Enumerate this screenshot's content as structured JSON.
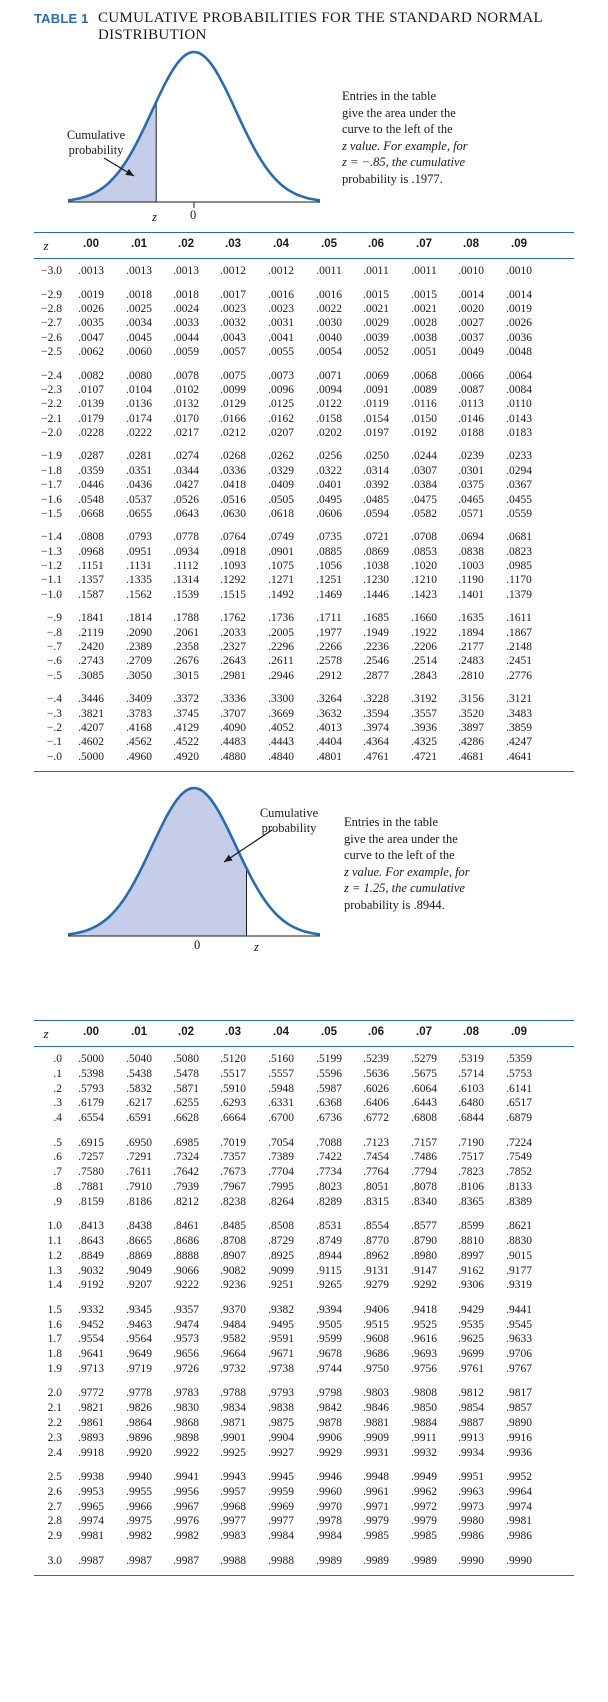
{
  "title": {
    "label": "TABLE 1",
    "text_line1": "CUMULATIVE PROBABILITIES FOR THE STANDARD NORMAL",
    "text_line2": "DISTRIBUTION"
  },
  "figure_left": {
    "label_line1": "Cumulative",
    "label_line2": "probability",
    "z_label": "z",
    "zero_label": "0",
    "note": [
      "Entries in the table",
      "give the area under the",
      "curve to the left of the",
      "z value. For example, for",
      "z = −.85, the cumulative",
      "probability is .1977."
    ]
  },
  "figure_right": {
    "label_line1": "Cumulative",
    "label_line2": "probability",
    "z_label": "z",
    "zero_label": "0",
    "note": [
      "Entries in the table",
      "give the area under the",
      "curve to the left of the",
      "z value. For example, for",
      "z = 1.25, the cumulative",
      "probability is .8944."
    ]
  },
  "headers": [
    "z",
    ".00",
    ".01",
    ".02",
    ".03",
    ".04",
    ".05",
    ".06",
    ".07",
    ".08",
    ".09"
  ],
  "negative_table": [
    [
      [
        "−3.0",
        ".0013",
        ".0013",
        ".0013",
        ".0012",
        ".0012",
        ".0011",
        ".0011",
        ".0011",
        ".0010",
        ".0010"
      ]
    ],
    [
      [
        "−2.9",
        ".0019",
        ".0018",
        ".0018",
        ".0017",
        ".0016",
        ".0016",
        ".0015",
        ".0015",
        ".0014",
        ".0014"
      ],
      [
        "−2.8",
        ".0026",
        ".0025",
        ".0024",
        ".0023",
        ".0023",
        ".0022",
        ".0021",
        ".0021",
        ".0020",
        ".0019"
      ],
      [
        "−2.7",
        ".0035",
        ".0034",
        ".0033",
        ".0032",
        ".0031",
        ".0030",
        ".0029",
        ".0028",
        ".0027",
        ".0026"
      ],
      [
        "−2.6",
        ".0047",
        ".0045",
        ".0044",
        ".0043",
        ".0041",
        ".0040",
        ".0039",
        ".0038",
        ".0037",
        ".0036"
      ],
      [
        "−2.5",
        ".0062",
        ".0060",
        ".0059",
        ".0057",
        ".0055",
        ".0054",
        ".0052",
        ".0051",
        ".0049",
        ".0048"
      ]
    ],
    [
      [
        "−2.4",
        ".0082",
        ".0080",
        ".0078",
        ".0075",
        ".0073",
        ".0071",
        ".0069",
        ".0068",
        ".0066",
        ".0064"
      ],
      [
        "−2.3",
        ".0107",
        ".0104",
        ".0102",
        ".0099",
        ".0096",
        ".0094",
        ".0091",
        ".0089",
        ".0087",
        ".0084"
      ],
      [
        "−2.2",
        ".0139",
        ".0136",
        ".0132",
        ".0129",
        ".0125",
        ".0122",
        ".0119",
        ".0116",
        ".0113",
        ".0110"
      ],
      [
        "−2.1",
        ".0179",
        ".0174",
        ".0170",
        ".0166",
        ".0162",
        ".0158",
        ".0154",
        ".0150",
        ".0146",
        ".0143"
      ],
      [
        "−2.0",
        ".0228",
        ".0222",
        ".0217",
        ".0212",
        ".0207",
        ".0202",
        ".0197",
        ".0192",
        ".0188",
        ".0183"
      ]
    ],
    [
      [
        "−1.9",
        ".0287",
        ".0281",
        ".0274",
        ".0268",
        ".0262",
        ".0256",
        ".0250",
        ".0244",
        ".0239",
        ".0233"
      ],
      [
        "−1.8",
        ".0359",
        ".0351",
        ".0344",
        ".0336",
        ".0329",
        ".0322",
        ".0314",
        ".0307",
        ".0301",
        ".0294"
      ],
      [
        "−1.7",
        ".0446",
        ".0436",
        ".0427",
        ".0418",
        ".0409",
        ".0401",
        ".0392",
        ".0384",
        ".0375",
        ".0367"
      ],
      [
        "−1.6",
        ".0548",
        ".0537",
        ".0526",
        ".0516",
        ".0505",
        ".0495",
        ".0485",
        ".0475",
        ".0465",
        ".0455"
      ],
      [
        "−1.5",
        ".0668",
        ".0655",
        ".0643",
        ".0630",
        ".0618",
        ".0606",
        ".0594",
        ".0582",
        ".0571",
        ".0559"
      ]
    ],
    [
      [
        "−1.4",
        ".0808",
        ".0793",
        ".0778",
        ".0764",
        ".0749",
        ".0735",
        ".0721",
        ".0708",
        ".0694",
        ".0681"
      ],
      [
        "−1.3",
        ".0968",
        ".0951",
        ".0934",
        ".0918",
        ".0901",
        ".0885",
        ".0869",
        ".0853",
        ".0838",
        ".0823"
      ],
      [
        "−1.2",
        ".1151",
        ".1131",
        ".1112",
        ".1093",
        ".1075",
        ".1056",
        ".1038",
        ".1020",
        ".1003",
        ".0985"
      ],
      [
        "−1.1",
        ".1357",
        ".1335",
        ".1314",
        ".1292",
        ".1271",
        ".1251",
        ".1230",
        ".1210",
        ".1190",
        ".1170"
      ],
      [
        "−1.0",
        ".1587",
        ".1562",
        ".1539",
        ".1515",
        ".1492",
        ".1469",
        ".1446",
        ".1423",
        ".1401",
        ".1379"
      ]
    ],
    [
      [
        "−.9",
        ".1841",
        ".1814",
        ".1788",
        ".1762",
        ".1736",
        ".1711",
        ".1685",
        ".1660",
        ".1635",
        ".1611"
      ],
      [
        "−.8",
        ".2119",
        ".2090",
        ".2061",
        ".2033",
        ".2005",
        ".1977",
        ".1949",
        ".1922",
        ".1894",
        ".1867"
      ],
      [
        "−.7",
        ".2420",
        ".2389",
        ".2358",
        ".2327",
        ".2296",
        ".2266",
        ".2236",
        ".2206",
        ".2177",
        ".2148"
      ],
      [
        "−.6",
        ".2743",
        ".2709",
        ".2676",
        ".2643",
        ".2611",
        ".2578",
        ".2546",
        ".2514",
        ".2483",
        ".2451"
      ],
      [
        "−.5",
        ".3085",
        ".3050",
        ".3015",
        ".2981",
        ".2946",
        ".2912",
        ".2877",
        ".2843",
        ".2810",
        ".2776"
      ]
    ],
    [
      [
        "−.4",
        ".3446",
        ".3409",
        ".3372",
        ".3336",
        ".3300",
        ".3264",
        ".3228",
        ".3192",
        ".3156",
        ".3121"
      ],
      [
        "−.3",
        ".3821",
        ".3783",
        ".3745",
        ".3707",
        ".3669",
        ".3632",
        ".3594",
        ".3557",
        ".3520",
        ".3483"
      ],
      [
        "−.2",
        ".4207",
        ".4168",
        ".4129",
        ".4090",
        ".4052",
        ".4013",
        ".3974",
        ".3936",
        ".3897",
        ".3859"
      ],
      [
        "−.1",
        ".4602",
        ".4562",
        ".4522",
        ".4483",
        ".4443",
        ".4404",
        ".4364",
        ".4325",
        ".4286",
        ".4247"
      ],
      [
        "−.0",
        ".5000",
        ".4960",
        ".4920",
        ".4880",
        ".4840",
        ".4801",
        ".4761",
        ".4721",
        ".4681",
        ".4641"
      ]
    ]
  ],
  "positive_table": [
    [
      [
        ".0",
        ".5000",
        ".5040",
        ".5080",
        ".5120",
        ".5160",
        ".5199",
        ".5239",
        ".5279",
        ".5319",
        ".5359"
      ],
      [
        ".1",
        ".5398",
        ".5438",
        ".5478",
        ".5517",
        ".5557",
        ".5596",
        ".5636",
        ".5675",
        ".5714",
        ".5753"
      ],
      [
        ".2",
        ".5793",
        ".5832",
        ".5871",
        ".5910",
        ".5948",
        ".5987",
        ".6026",
        ".6064",
        ".6103",
        ".6141"
      ],
      [
        ".3",
        ".6179",
        ".6217",
        ".6255",
        ".6293",
        ".6331",
        ".6368",
        ".6406",
        ".6443",
        ".6480",
        ".6517"
      ],
      [
        ".4",
        ".6554",
        ".6591",
        ".6628",
        ".6664",
        ".6700",
        ".6736",
        ".6772",
        ".6808",
        ".6844",
        ".6879"
      ]
    ],
    [
      [
        ".5",
        ".6915",
        ".6950",
        ".6985",
        ".7019",
        ".7054",
        ".7088",
        ".7123",
        ".7157",
        ".7190",
        ".7224"
      ],
      [
        ".6",
        ".7257",
        ".7291",
        ".7324",
        ".7357",
        ".7389",
        ".7422",
        ".7454",
        ".7486",
        ".7517",
        ".7549"
      ],
      [
        ".7",
        ".7580",
        ".7611",
        ".7642",
        ".7673",
        ".7704",
        ".7734",
        ".7764",
        ".7794",
        ".7823",
        ".7852"
      ],
      [
        ".8",
        ".7881",
        ".7910",
        ".7939",
        ".7967",
        ".7995",
        ".8023",
        ".8051",
        ".8078",
        ".8106",
        ".8133"
      ],
      [
        ".9",
        ".8159",
        ".8186",
        ".8212",
        ".8238",
        ".8264",
        ".8289",
        ".8315",
        ".8340",
        ".8365",
        ".8389"
      ]
    ],
    [
      [
        "1.0",
        ".8413",
        ".8438",
        ".8461",
        ".8485",
        ".8508",
        ".8531",
        ".8554",
        ".8577",
        ".8599",
        ".8621"
      ],
      [
        "1.1",
        ".8643",
        ".8665",
        ".8686",
        ".8708",
        ".8729",
        ".8749",
        ".8770",
        ".8790",
        ".8810",
        ".8830"
      ],
      [
        "1.2",
        ".8849",
        ".8869",
        ".8888",
        ".8907",
        ".8925",
        ".8944",
        ".8962",
        ".8980",
        ".8997",
        ".9015"
      ],
      [
        "1.3",
        ".9032",
        ".9049",
        ".9066",
        ".9082",
        ".9099",
        ".9115",
        ".9131",
        ".9147",
        ".9162",
        ".9177"
      ],
      [
        "1.4",
        ".9192",
        ".9207",
        ".9222",
        ".9236",
        ".9251",
        ".9265",
        ".9279",
        ".9292",
        ".9306",
        ".9319"
      ]
    ],
    [
      [
        "1.5",
        ".9332",
        ".9345",
        ".9357",
        ".9370",
        ".9382",
        ".9394",
        ".9406",
        ".9418",
        ".9429",
        ".9441"
      ],
      [
        "1.6",
        ".9452",
        ".9463",
        ".9474",
        ".9484",
        ".9495",
        ".9505",
        ".9515",
        ".9525",
        ".9535",
        ".9545"
      ],
      [
        "1.7",
        ".9554",
        ".9564",
        ".9573",
        ".9582",
        ".9591",
        ".9599",
        ".9608",
        ".9616",
        ".9625",
        ".9633"
      ],
      [
        "1.8",
        ".9641",
        ".9649",
        ".9656",
        ".9664",
        ".9671",
        ".9678",
        ".9686",
        ".9693",
        ".9699",
        ".9706"
      ],
      [
        "1.9",
        ".9713",
        ".9719",
        ".9726",
        ".9732",
        ".9738",
        ".9744",
        ".9750",
        ".9756",
        ".9761",
        ".9767"
      ]
    ],
    [
      [
        "2.0",
        ".9772",
        ".9778",
        ".9783",
        ".9788",
        ".9793",
        ".9798",
        ".9803",
        ".9808",
        ".9812",
        ".9817"
      ],
      [
        "2.1",
        ".9821",
        ".9826",
        ".9830",
        ".9834",
        ".9838",
        ".9842",
        ".9846",
        ".9850",
        ".9854",
        ".9857"
      ],
      [
        "2.2",
        ".9861",
        ".9864",
        ".9868",
        ".9871",
        ".9875",
        ".9878",
        ".9881",
        ".9884",
        ".9887",
        ".9890"
      ],
      [
        "2.3",
        ".9893",
        ".9896",
        ".9898",
        ".9901",
        ".9904",
        ".9906",
        ".9909",
        ".9911",
        ".9913",
        ".9916"
      ],
      [
        "2.4",
        ".9918",
        ".9920",
        ".9922",
        ".9925",
        ".9927",
        ".9929",
        ".9931",
        ".9932",
        ".9934",
        ".9936"
      ]
    ],
    [
      [
        "2.5",
        ".9938",
        ".9940",
        ".9941",
        ".9943",
        ".9945",
        ".9946",
        ".9948",
        ".9949",
        ".9951",
        ".9952"
      ],
      [
        "2.6",
        ".9953",
        ".9955",
        ".9956",
        ".9957",
        ".9959",
        ".9960",
        ".9961",
        ".9962",
        ".9963",
        ".9964"
      ],
      [
        "2.7",
        ".9965",
        ".9966",
        ".9967",
        ".9968",
        ".9969",
        ".9970",
        ".9971",
        ".9972",
        ".9973",
        ".9974"
      ],
      [
        "2.8",
        ".9974",
        ".9975",
        ".9976",
        ".9977",
        ".9977",
        ".9978",
        ".9979",
        ".9979",
        ".9980",
        ".9981"
      ],
      [
        "2.9",
        ".9981",
        ".9982",
        ".9982",
        ".9983",
        ".9984",
        ".9984",
        ".9985",
        ".9985",
        ".9986",
        ".9986"
      ]
    ],
    [
      [
        "3.0",
        ".9987",
        ".9987",
        ".9987",
        ".9988",
        ".9988",
        ".9989",
        ".9989",
        ".9989",
        ".9990",
        ".9990"
      ]
    ]
  ],
  "colors": {
    "accent": "#2a6bb0",
    "shade": "#c5cde8",
    "text": "#1a1a1a"
  }
}
